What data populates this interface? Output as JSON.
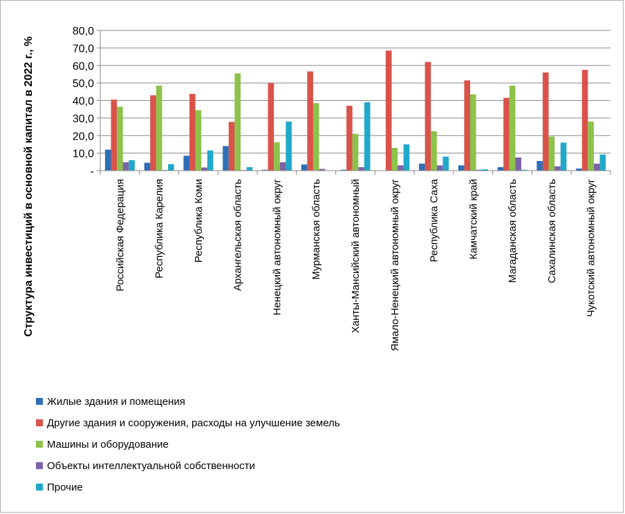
{
  "chart_data": {
    "type": "bar",
    "title": "",
    "xlabel": "",
    "ylabel": "Структура инвестиций в основной капитал в 2022 г., %",
    "ylim": [
      0,
      80
    ],
    "yticks": [
      "-",
      "10,0",
      "20,0",
      "30,0",
      "40,0",
      "50,0",
      "60,0",
      "70,0",
      "80,0"
    ],
    "grid": true,
    "legend_position": "bottom",
    "categories": [
      "Российская Федерация",
      "Республика Карелия",
      "Республика Коми",
      "Архангельская область",
      "Ненецкий автономный округ",
      "Мурманская область",
      "Ханты-Мансийский автономный",
      "Ямало-Ненецкий автономный округ",
      "Республика Саха",
      "Камчатский край",
      "Магаданская область",
      "Сахалинская область",
      "Чукотский автономный округ"
    ],
    "series": [
      {
        "name": "Жилые здания и помещения",
        "color": "#2f6fb8",
        "values": [
          12.0,
          4.5,
          8.5,
          14.0,
          0.5,
          3.5,
          0.5,
          0.2,
          4.0,
          3.0,
          2.0,
          5.5,
          1.2
        ]
      },
      {
        "name": "Другие здания и сооружения, расходы на улучшение земель",
        "color": "#d9534a",
        "values": [
          40.5,
          43.0,
          43.8,
          27.8,
          50.0,
          56.6,
          37.0,
          68.5,
          62.0,
          51.5,
          41.5,
          56.0,
          57.5
        ]
      },
      {
        "name": "Машины и оборудование",
        "color": "#8dc24b",
        "values": [
          36.5,
          48.5,
          34.5,
          55.5,
          16.2,
          38.5,
          21.0,
          13.0,
          22.5,
          43.5,
          48.5,
          19.5,
          28.0
        ]
      },
      {
        "name": "Объекты интеллектуальной собственности",
        "color": "#7e62a8",
        "values": [
          4.8,
          0.3,
          1.8,
          0.3,
          4.8,
          1.0,
          2.0,
          3.0,
          3.0,
          0.5,
          7.5,
          2.5,
          4.0
        ]
      },
      {
        "name": "Прочие",
        "color": "#21a9c9",
        "values": [
          6.0,
          3.7,
          11.5,
          2.0,
          28.0,
          0.2,
          39.0,
          15.0,
          8.0,
          0.8,
          0.5,
          16.0,
          9.2
        ]
      }
    ]
  }
}
